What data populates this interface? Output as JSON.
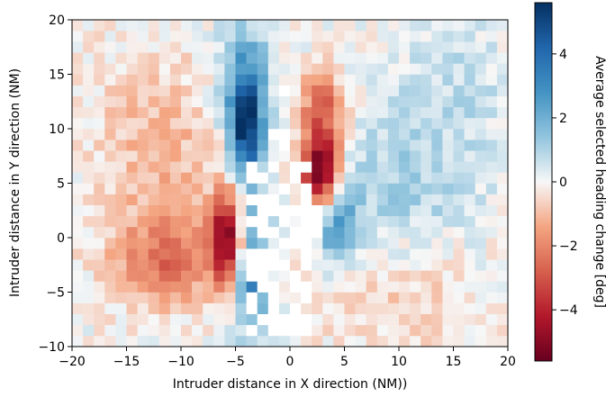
{
  "chart_data": {
    "type": "heatmap",
    "title": "",
    "xlabel": "Intruder distance in X direction (NM))",
    "ylabel": "Intruder distance in Y direction (NM)",
    "colorbar_label": "Average selected heading change [deg]",
    "xlim": [
      -20,
      20
    ],
    "ylim": [
      -10,
      20
    ],
    "x_ticks": [
      -20,
      -15,
      -10,
      -5,
      0,
      5,
      10,
      15,
      20
    ],
    "y_ticks": [
      -10,
      -5,
      0,
      5,
      10,
      15,
      20
    ],
    "colorbar_ticks": [
      -4,
      -2,
      0,
      2,
      4
    ],
    "colorbar_range": [
      -5.6,
      5.6
    ],
    "colormap": "RdBu",
    "cell_size_nm": 1,
    "grid": false,
    "colors": {
      "min": "#67001f",
      "neg_mid": "#d6604d",
      "zero": "#f7f7f7",
      "pos_mid": "#4393c3",
      "max": "#053061",
      "empty": "#ffffff"
    }
  }
}
